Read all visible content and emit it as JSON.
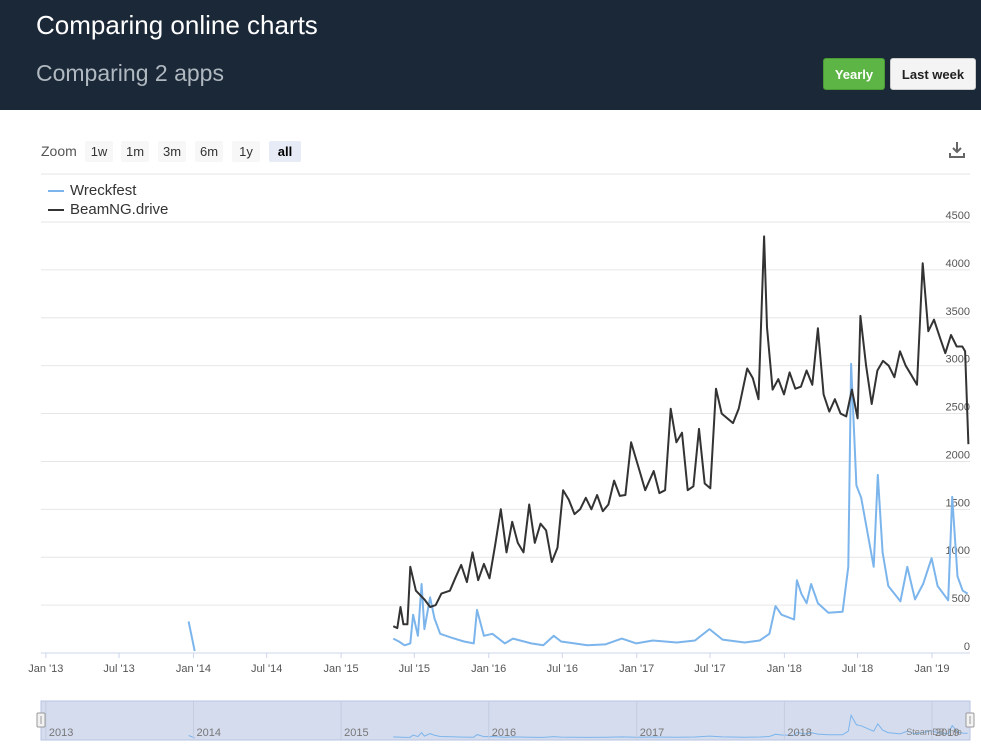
{
  "header": {
    "title": "Comparing online charts",
    "subtitle": "Comparing 2 apps",
    "yearly_label": "Yearly",
    "lastweek_label": "Last week"
  },
  "zoom": {
    "label": "Zoom",
    "options": [
      "1w",
      "1m",
      "3m",
      "6m",
      "1y",
      "all"
    ],
    "active": "all"
  },
  "colors": {
    "wreckfest": "#7cb5ec",
    "beamng": "#333333",
    "navigator_fill": "#d4dcee"
  },
  "navigator": {
    "years": [
      "2013",
      "2014",
      "2015",
      "2016",
      "2017",
      "2018",
      "2019"
    ],
    "watermark": "SteamDB.info"
  },
  "chart_data": {
    "type": "line",
    "title": "",
    "xlabel": "",
    "ylabel": "",
    "x_range": [
      "2012-12-20",
      "2019-04-05"
    ],
    "ylim": [
      0,
      4500
    ],
    "y_ticks": [
      0,
      500,
      1000,
      1500,
      2000,
      2500,
      3000,
      3500,
      4000,
      4500
    ],
    "x_tick_labels": [
      {
        "label": "Jan '13",
        "date": "2013-01-01"
      },
      {
        "label": "Jul '13",
        "date": "2013-07-01"
      },
      {
        "label": "Jan '14",
        "date": "2014-01-01"
      },
      {
        "label": "Jul '14",
        "date": "2014-07-01"
      },
      {
        "label": "Jan '15",
        "date": "2015-01-01"
      },
      {
        "label": "Jul '15",
        "date": "2015-07-01"
      },
      {
        "label": "Jan '16",
        "date": "2016-01-01"
      },
      {
        "label": "Jul '16",
        "date": "2016-07-01"
      },
      {
        "label": "Jan '17",
        "date": "2017-01-01"
      },
      {
        "label": "Jul '17",
        "date": "2017-07-01"
      },
      {
        "label": "Jan '18",
        "date": "2018-01-01"
      },
      {
        "label": "Jul '18",
        "date": "2018-07-01"
      },
      {
        "label": "Jan '19",
        "date": "2019-01-01"
      }
    ],
    "grid": true,
    "legend": "top-left",
    "series": [
      {
        "name": "Wreckfest",
        "segments": [
          [
            [
              "2013-12-20",
              330
            ],
            [
              "2014-01-04",
              20
            ]
          ],
          [
            [
              "2015-05-10",
              150
            ],
            [
              "2015-05-24",
              120
            ],
            [
              "2015-06-07",
              80
            ],
            [
              "2015-06-21",
              100
            ],
            [
              "2015-06-28",
              400
            ],
            [
              "2015-07-10",
              180
            ],
            [
              "2015-07-19",
              720
            ],
            [
              "2015-07-26",
              250
            ],
            [
              "2015-08-09",
              580
            ],
            [
              "2015-08-20",
              360
            ],
            [
              "2015-09-03",
              200
            ],
            [
              "2015-10-01",
              160
            ],
            [
              "2015-11-01",
              120
            ],
            [
              "2015-11-25",
              100
            ],
            [
              "2015-12-03",
              450
            ],
            [
              "2015-12-20",
              180
            ],
            [
              "2016-01-10",
              200
            ],
            [
              "2016-02-10",
              100
            ],
            [
              "2016-03-01",
              150
            ],
            [
              "2016-04-15",
              100
            ],
            [
              "2016-05-15",
              80
            ],
            [
              "2016-06-10",
              180
            ],
            [
              "2016-06-28",
              120
            ],
            [
              "2016-09-01",
              80
            ],
            [
              "2016-10-15",
              90
            ],
            [
              "2016-11-25",
              150
            ],
            [
              "2016-12-31",
              100
            ],
            [
              "2017-02-10",
              130
            ],
            [
              "2017-04-10",
              110
            ],
            [
              "2017-05-25",
              130
            ],
            [
              "2017-06-30",
              250
            ],
            [
              "2017-08-01",
              140
            ],
            [
              "2017-09-25",
              110
            ],
            [
              "2017-11-01",
              130
            ],
            [
              "2017-11-25",
              200
            ],
            [
              "2017-12-10",
              490
            ],
            [
              "2017-12-25",
              400
            ],
            [
              "2018-01-25",
              350
            ],
            [
              "2018-02-01",
              760
            ],
            [
              "2018-02-12",
              620
            ],
            [
              "2018-02-25",
              520
            ],
            [
              "2018-03-08",
              720
            ],
            [
              "2018-03-25",
              520
            ],
            [
              "2018-04-20",
              420
            ],
            [
              "2018-05-25",
              430
            ],
            [
              "2018-06-08",
              900
            ],
            [
              "2018-06-15",
              3020
            ],
            [
              "2018-06-28",
              1750
            ],
            [
              "2018-07-10",
              1620
            ],
            [
              "2018-08-10",
              900
            ],
            [
              "2018-08-20",
              1860
            ],
            [
              "2018-09-01",
              1050
            ],
            [
              "2018-09-15",
              700
            ],
            [
              "2018-10-15",
              540
            ],
            [
              "2018-11-01",
              900
            ],
            [
              "2018-11-20",
              560
            ],
            [
              "2018-12-10",
              720
            ],
            [
              "2018-12-31",
              990
            ],
            [
              "2019-01-15",
              700
            ],
            [
              "2019-02-10",
              550
            ],
            [
              "2019-02-20",
              1630
            ],
            [
              "2019-03-05",
              800
            ],
            [
              "2019-03-18",
              650
            ],
            [
              "2019-03-30",
              620
            ]
          ]
        ]
      },
      {
        "name": "BeamNG.drive",
        "segments": [
          [
            [
              "2015-05-10",
              280
            ],
            [
              "2015-05-20",
              260
            ],
            [
              "2015-05-28",
              480
            ],
            [
              "2015-06-04",
              300
            ],
            [
              "2015-06-14",
              300
            ],
            [
              "2015-06-21",
              900
            ],
            [
              "2015-07-05",
              650
            ],
            [
              "2015-07-26",
              560
            ],
            [
              "2015-08-09",
              480
            ],
            [
              "2015-08-23",
              500
            ],
            [
              "2015-09-06",
              620
            ],
            [
              "2015-09-27",
              650
            ],
            [
              "2015-10-11",
              790
            ],
            [
              "2015-10-25",
              920
            ],
            [
              "2015-11-08",
              740
            ],
            [
              "2015-11-22",
              1050
            ],
            [
              "2015-12-06",
              760
            ],
            [
              "2015-12-20",
              930
            ],
            [
              "2016-01-03",
              780
            ],
            [
              "2016-01-17",
              1130
            ],
            [
              "2016-01-31",
              1500
            ],
            [
              "2016-02-14",
              1050
            ],
            [
              "2016-02-28",
              1370
            ],
            [
              "2016-03-13",
              1150
            ],
            [
              "2016-03-27",
              1050
            ],
            [
              "2016-04-10",
              1550
            ],
            [
              "2016-04-24",
              1150
            ],
            [
              "2016-05-08",
              1350
            ],
            [
              "2016-05-22",
              1280
            ],
            [
              "2016-06-05",
              950
            ],
            [
              "2016-06-19",
              1100
            ],
            [
              "2016-07-03",
              1700
            ],
            [
              "2016-07-17",
              1600
            ],
            [
              "2016-07-31",
              1450
            ],
            [
              "2016-08-14",
              1500
            ],
            [
              "2016-08-28",
              1620
            ],
            [
              "2016-09-11",
              1500
            ],
            [
              "2016-09-25",
              1650
            ],
            [
              "2016-10-09",
              1480
            ],
            [
              "2016-10-23",
              1550
            ],
            [
              "2016-11-06",
              1800
            ],
            [
              "2016-11-20",
              1640
            ],
            [
              "2016-12-04",
              1650
            ],
            [
              "2016-12-18",
              2200
            ],
            [
              "2017-01-08",
              1900
            ],
            [
              "2017-01-22",
              1700
            ],
            [
              "2017-02-12",
              1900
            ],
            [
              "2017-02-26",
              1670
            ],
            [
              "2017-03-12",
              1700
            ],
            [
              "2017-03-26",
              2550
            ],
            [
              "2017-04-09",
              2200
            ],
            [
              "2017-04-23",
              2300
            ],
            [
              "2017-05-07",
              1700
            ],
            [
              "2017-05-21",
              1740
            ],
            [
              "2017-06-04",
              2340
            ],
            [
              "2017-06-18",
              1770
            ],
            [
              "2017-07-02",
              1720
            ],
            [
              "2017-07-16",
              2760
            ],
            [
              "2017-07-30",
              2500
            ],
            [
              "2017-08-13",
              2450
            ],
            [
              "2017-08-27",
              2400
            ],
            [
              "2017-09-10",
              2550
            ],
            [
              "2017-10-01",
              2970
            ],
            [
              "2017-10-15",
              2870
            ],
            [
              "2017-10-29",
              2650
            ],
            [
              "2017-11-12",
              4350
            ],
            [
              "2017-11-19",
              3400
            ],
            [
              "2017-12-03",
              2750
            ],
            [
              "2017-12-17",
              2860
            ],
            [
              "2017-12-31",
              2700
            ],
            [
              "2018-01-14",
              2930
            ],
            [
              "2018-01-28",
              2760
            ],
            [
              "2018-02-11",
              2780
            ],
            [
              "2018-02-25",
              2950
            ],
            [
              "2018-03-11",
              2800
            ],
            [
              "2018-03-25",
              3390
            ],
            [
              "2018-04-08",
              2700
            ],
            [
              "2018-04-22",
              2520
            ],
            [
              "2018-05-06",
              2650
            ],
            [
              "2018-05-20",
              2500
            ],
            [
              "2018-06-03",
              2470
            ],
            [
              "2018-06-17",
              2750
            ],
            [
              "2018-07-01",
              2450
            ],
            [
              "2018-07-08",
              3520
            ],
            [
              "2018-07-22",
              3000
            ],
            [
              "2018-08-05",
              2600
            ],
            [
              "2018-08-19",
              2950
            ],
            [
              "2018-09-02",
              3050
            ],
            [
              "2018-09-16",
              3000
            ],
            [
              "2018-09-30",
              2880
            ],
            [
              "2018-10-14",
              3150
            ],
            [
              "2018-10-28",
              3000
            ],
            [
              "2018-11-11",
              2900
            ],
            [
              "2018-11-25",
              2800
            ],
            [
              "2018-12-09",
              4070
            ],
            [
              "2018-12-23",
              3360
            ],
            [
              "2019-01-06",
              3480
            ],
            [
              "2019-01-20",
              3300
            ],
            [
              "2019-02-03",
              3130
            ],
            [
              "2019-02-17",
              3320
            ],
            [
              "2019-03-03",
              3200
            ],
            [
              "2019-03-17",
              3200
            ],
            [
              "2019-03-24",
              3150
            ],
            [
              "2019-04-01",
              2180
            ]
          ]
        ]
      }
    ]
  }
}
